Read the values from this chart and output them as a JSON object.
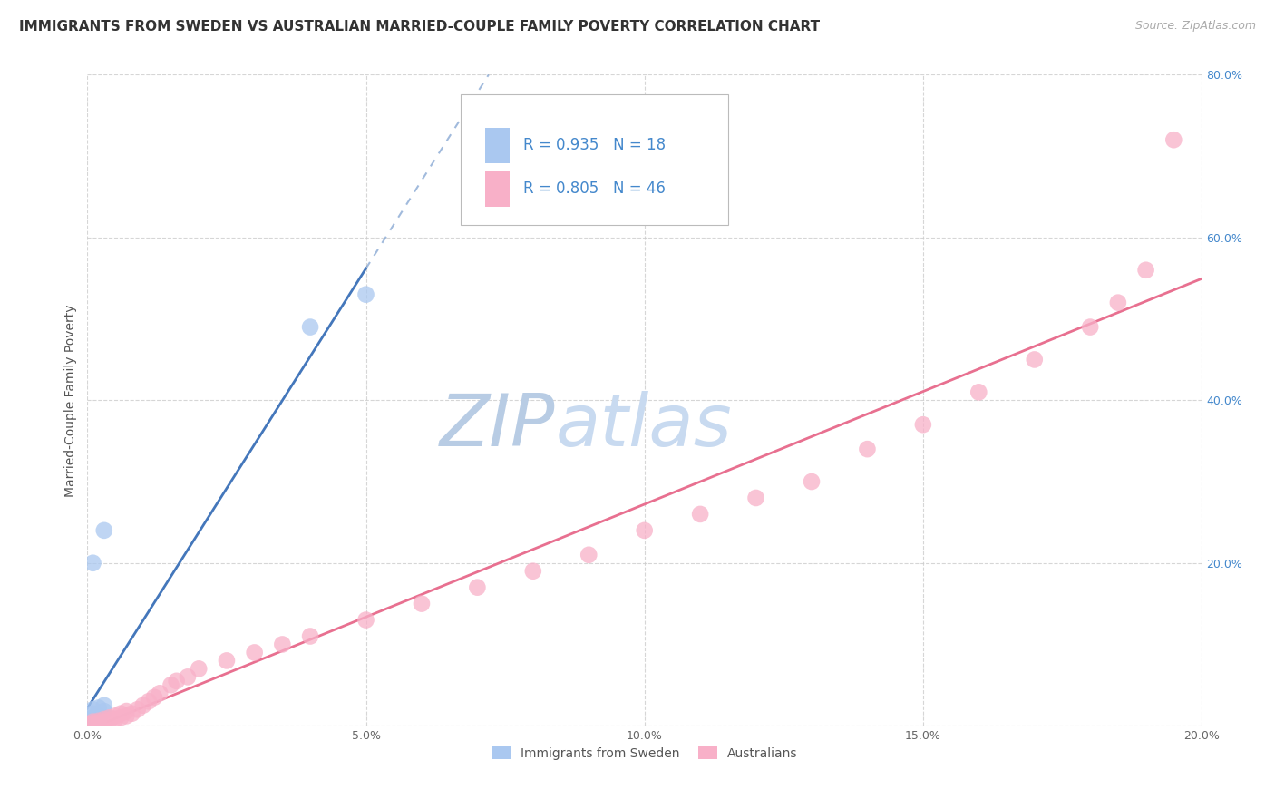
{
  "title": "IMMIGRANTS FROM SWEDEN VS AUSTRALIAN MARRIED-COUPLE FAMILY POVERTY CORRELATION CHART",
  "source": "Source: ZipAtlas.com",
  "ylabel": "Married-Couple Family Poverty",
  "watermark_zip": "ZIP",
  "watermark_atlas": "atlas",
  "legend_top": [
    {
      "label": "R = 0.935   N = 18",
      "color": "#aac8f0"
    },
    {
      "label": "R = 0.805   N = 46",
      "color": "#f8b0c8"
    }
  ],
  "legend_bottom": [
    {
      "label": "Immigrants from Sweden",
      "color": "#aac8f0"
    },
    {
      "label": "Australians",
      "color": "#f8b0c8"
    }
  ],
  "sweden_scatter": [
    [
      0.0,
      0.002
    ],
    [
      0.001,
      0.004
    ],
    [
      0.001,
      0.006
    ],
    [
      0.0,
      0.003
    ],
    [
      0.001,
      0.008
    ],
    [
      0.002,
      0.005
    ],
    [
      0.001,
      0.01
    ],
    [
      0.002,
      0.012
    ],
    [
      0.001,
      0.015
    ],
    [
      0.002,
      0.008
    ],
    [
      0.003,
      0.018
    ],
    [
      0.001,
      0.02
    ],
    [
      0.002,
      0.022
    ],
    [
      0.003,
      0.025
    ],
    [
      0.001,
      0.2
    ],
    [
      0.003,
      0.24
    ],
    [
      0.04,
      0.49
    ],
    [
      0.05,
      0.53
    ]
  ],
  "australia_scatter": [
    [
      0.0,
      0.002
    ],
    [
      0.001,
      0.003
    ],
    [
      0.001,
      0.005
    ],
    [
      0.002,
      0.004
    ],
    [
      0.002,
      0.006
    ],
    [
      0.003,
      0.005
    ],
    [
      0.003,
      0.008
    ],
    [
      0.004,
      0.007
    ],
    [
      0.004,
      0.01
    ],
    [
      0.005,
      0.008
    ],
    [
      0.005,
      0.012
    ],
    [
      0.006,
      0.01
    ],
    [
      0.006,
      0.015
    ],
    [
      0.007,
      0.012
    ],
    [
      0.007,
      0.018
    ],
    [
      0.008,
      0.015
    ],
    [
      0.009,
      0.02
    ],
    [
      0.01,
      0.025
    ],
    [
      0.011,
      0.03
    ],
    [
      0.012,
      0.035
    ],
    [
      0.013,
      0.04
    ],
    [
      0.015,
      0.05
    ],
    [
      0.016,
      0.055
    ],
    [
      0.018,
      0.06
    ],
    [
      0.02,
      0.07
    ],
    [
      0.025,
      0.08
    ],
    [
      0.03,
      0.09
    ],
    [
      0.035,
      0.1
    ],
    [
      0.04,
      0.11
    ],
    [
      0.05,
      0.13
    ],
    [
      0.06,
      0.15
    ],
    [
      0.07,
      0.17
    ],
    [
      0.08,
      0.19
    ],
    [
      0.09,
      0.21
    ],
    [
      0.1,
      0.24
    ],
    [
      0.11,
      0.26
    ],
    [
      0.12,
      0.28
    ],
    [
      0.13,
      0.3
    ],
    [
      0.14,
      0.34
    ],
    [
      0.15,
      0.37
    ],
    [
      0.16,
      0.41
    ],
    [
      0.17,
      0.45
    ],
    [
      0.18,
      0.49
    ],
    [
      0.185,
      0.52
    ],
    [
      0.19,
      0.56
    ],
    [
      0.195,
      0.72
    ]
  ],
  "xlim": [
    0.0,
    0.2
  ],
  "ylim": [
    0.0,
    0.8
  ],
  "xtick_vals": [
    0.0,
    0.05,
    0.1,
    0.15,
    0.2
  ],
  "xtick_labels": [
    "0.0%",
    "5.0%",
    "10.0%",
    "15.0%",
    "20.0%"
  ],
  "ytick_vals": [
    0.0,
    0.2,
    0.4,
    0.6,
    0.8
  ],
  "ytick_labels": [
    "",
    "20.0%",
    "40.0%",
    "60.0%",
    "80.0%"
  ],
  "sweden_line_color": "#4477bb",
  "australia_line_color": "#e87090",
  "scatter_blue": "#aac8f0",
  "scatter_pink": "#f8b0c8",
  "background_color": "#ffffff",
  "grid_color": "#cccccc",
  "title_color": "#333333",
  "source_color": "#aaaaaa",
  "watermark_color": "#dde8f4",
  "watermark_color2": "#c8d8f0",
  "title_fontsize": 11,
  "axis_label_fontsize": 10,
  "tick_fontsize": 9,
  "scatter_size": 180,
  "ytick_color": "#4488cc"
}
